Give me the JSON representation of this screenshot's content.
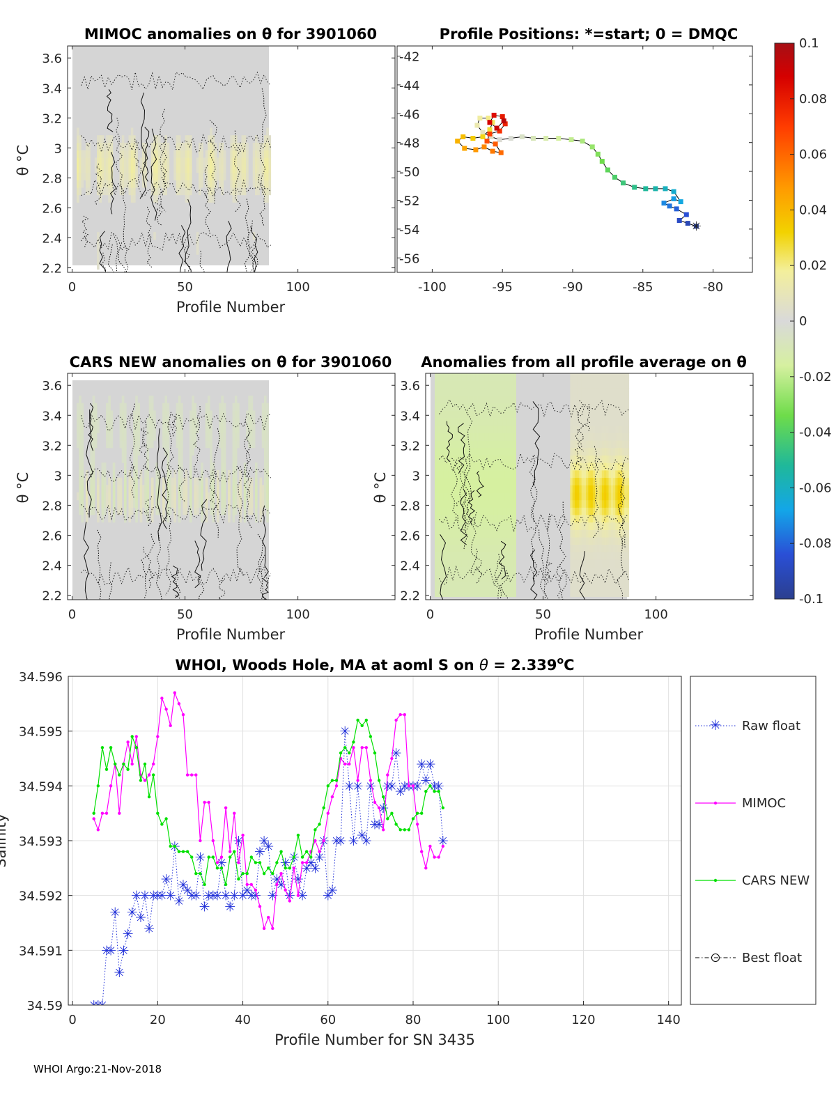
{
  "footer": "WHOI Argo:21-Nov-2018",
  "colorbar": {
    "ticks": [
      "0.1",
      "0.08",
      "0.06",
      "0.04",
      "0.02",
      "0",
      "-0.02",
      "-0.04",
      "-0.06",
      "-0.08",
      "-0.1"
    ],
    "range": [
      -0.1,
      0.1
    ],
    "colormap": "parula-like (blue-cyan-green-grey-yellow-orange-red)"
  },
  "chart_data": [
    {
      "id": "mimoc",
      "type": "heatmap",
      "title": "MIMOC anomalies on θ  for 3901060",
      "xlabel": "Profile Number",
      "ylabel": "θ °C",
      "xticks": [
        "0",
        "50",
        "100"
      ],
      "yticks": [
        "3.6",
        "3.4",
        "3.2",
        "3",
        "2.8",
        "2.6",
        "2.4",
        "2.2"
      ],
      "xlim": [
        -2,
        143
      ],
      "ylim": [
        2.17,
        3.68
      ],
      "data_x_range": [
        2,
        88
      ],
      "note_values": "weak anomalies, mostly 0 to +0.02 in the 2.6-3.0 band"
    },
    {
      "id": "positions",
      "type": "scatter",
      "title": "Profile Positions: *=start; 0 = DMQC",
      "xticks": [
        "-100",
        "-95",
        "-90",
        "-85",
        "-80"
      ],
      "yticks": [
        "-42",
        "-44",
        "-46",
        "-48",
        "-50",
        "-52",
        "-54",
        "-56"
      ],
      "xlim": [
        -102.5,
        -77.2
      ],
      "ylim": [
        -57,
        -41.3
      ],
      "track": [
        [
          -81.2,
          -53.8
        ],
        [
          -81.8,
          -53.6
        ],
        [
          -82.4,
          -53.4
        ],
        [
          -81.9,
          -53.0
        ],
        [
          -82.6,
          -52.6
        ],
        [
          -83.1,
          -52.4
        ],
        [
          -83.5,
          -52.2
        ],
        [
          -82.8,
          -51.9
        ],
        [
          -82.3,
          -52.1
        ],
        [
          -82.8,
          -51.4
        ],
        [
          -83.4,
          -51.2
        ],
        [
          -84.1,
          -51.2
        ],
        [
          -84.8,
          -51.2
        ],
        [
          -85.6,
          -51.1
        ],
        [
          -86.4,
          -50.8
        ],
        [
          -87.0,
          -50.4
        ],
        [
          -87.5,
          -49.9
        ],
        [
          -87.9,
          -49.3
        ],
        [
          -88.2,
          -48.8
        ],
        [
          -88.6,
          -48.3
        ],
        [
          -89.3,
          -47.9
        ],
        [
          -90.1,
          -47.8
        ],
        [
          -91.0,
          -47.7
        ],
        [
          -91.9,
          -47.7
        ],
        [
          -92.8,
          -47.7
        ],
        [
          -93.6,
          -47.6
        ],
        [
          -94.4,
          -47.7
        ],
        [
          -95.2,
          -47.8
        ],
        [
          -95.8,
          -47.6
        ],
        [
          -96.4,
          -47.3
        ],
        [
          -96.8,
          -46.8
        ],
        [
          -96.6,
          -46.3
        ],
        [
          -96.0,
          -46.3
        ],
        [
          -95.7,
          -46.6
        ],
        [
          -95.9,
          -47.1
        ],
        [
          -96.4,
          -47.6
        ],
        [
          -97.1,
          -47.7
        ],
        [
          -97.8,
          -47.6
        ],
        [
          -98.2,
          -47.9
        ],
        [
          -97.7,
          -48.4
        ],
        [
          -96.9,
          -48.5
        ],
        [
          -96.3,
          -48.3
        ],
        [
          -95.7,
          -48.6
        ],
        [
          -95.1,
          -48.7
        ],
        [
          -95.5,
          -48.1
        ],
        [
          -96.1,
          -47.9
        ],
        [
          -95.9,
          -47.4
        ],
        [
          -95.2,
          -47.2
        ],
        [
          -94.8,
          -46.7
        ],
        [
          -95.0,
          -46.2
        ],
        [
          -95.6,
          -46.1
        ],
        [
          -95.9,
          -46.6
        ],
        [
          -95.4,
          -47.0
        ],
        [
          -94.9,
          -46.5
        ]
      ],
      "track_color_from": "profile index (blue start → red end)"
    },
    {
      "id": "cars",
      "type": "heatmap",
      "title": "CARS NEW anomalies on θ for 3901060",
      "xlabel": "Profile Number",
      "ylabel": "θ °C",
      "xticks": [
        "0",
        "50",
        "100"
      ],
      "yticks": [
        "3.6",
        "3.4",
        "3.2",
        "3",
        "2.8",
        "2.6",
        "2.4",
        "2.2"
      ],
      "xlim": [
        -2,
        143
      ],
      "ylim": [
        2.17,
        3.68
      ],
      "data_x_range": [
        2,
        88
      ]
    },
    {
      "id": "allprof",
      "type": "heatmap",
      "title": "Anomalies from all profile average on θ",
      "xlabel": "Profile Number",
      "ylabel": "θ °C",
      "xticks": [
        "0",
        "50",
        "100"
      ],
      "yticks": [
        "3.6",
        "3.4",
        "3.2",
        "3",
        "2.8",
        "2.6",
        "2.4",
        "2.2"
      ],
      "xlim": [
        -2,
        143
      ],
      "ylim": [
        2.17,
        3.68
      ],
      "data_x_range": [
        2,
        88
      ],
      "note_values": "negative (-0.02) for profiles 2-35, positive (+0.03) for profiles 62-88 near θ 2.6-3.0"
    },
    {
      "id": "salinity",
      "type": "line",
      "title": "WHOI, Woods Hole, MA at aoml S on θ = 2.339°C",
      "title_parts": [
        "WHOI, Woods Hole, MA at aoml S on ",
        "θ",
        " = 2.339",
        "o",
        "C"
      ],
      "xlabel": "Profile Number for SN 3435",
      "ylabel": "Salinity",
      "xticks": [
        "0",
        "20",
        "40",
        "60",
        "80",
        "100",
        "120",
        "140"
      ],
      "yticks": [
        "34.596",
        "34.595",
        "34.594",
        "34.593",
        "34.592",
        "34.591",
        "34.59"
      ],
      "xlim": [
        -1,
        143
      ],
      "ylim": [
        34.59,
        34.596
      ],
      "grid": true,
      "legend": "right, outside axes",
      "series": [
        {
          "name": "Raw float",
          "style": "blue dotted with * markers",
          "color": "#1f2fd8",
          "x": [
            5,
            6,
            7,
            8,
            9,
            10,
            11,
            12,
            13,
            14,
            15,
            16,
            17,
            18,
            19,
            20,
            21,
            22,
            23,
            24,
            25,
            26,
            27,
            28,
            29,
            30,
            31,
            32,
            33,
            34,
            35,
            36,
            37,
            38,
            39,
            40,
            41,
            42,
            43,
            44,
            45,
            46,
            47,
            48,
            49,
            50,
            51,
            52,
            53,
            54,
            55,
            56,
            57,
            58,
            59,
            60,
            61,
            62,
            63,
            64,
            65,
            66,
            67,
            68,
            69,
            70,
            71,
            72,
            73,
            74,
            75,
            76,
            77,
            78,
            79,
            80,
            81,
            82,
            83,
            84,
            85,
            86,
            87
          ],
          "y": [
            34.59,
            34.59,
            34.59,
            34.591,
            34.591,
            34.5917,
            34.5906,
            34.591,
            34.5913,
            34.5917,
            34.592,
            34.5916,
            34.592,
            34.5914,
            34.592,
            34.592,
            34.592,
            34.5923,
            34.592,
            34.5929,
            34.5919,
            34.5922,
            34.5921,
            34.592,
            34.592,
            34.5927,
            34.5918,
            34.592,
            34.592,
            34.592,
            34.5926,
            34.592,
            34.5918,
            34.592,
            34.593,
            34.592,
            34.5921,
            34.592,
            34.592,
            34.5928,
            34.593,
            34.5929,
            34.592,
            34.5923,
            34.5922,
            34.5926,
            34.592,
            34.5927,
            34.5923,
            34.592,
            34.5925,
            34.5926,
            34.5925,
            34.5927,
            34.593,
            34.592,
            34.5921,
            34.593,
            34.593,
            34.595,
            34.594,
            34.593,
            34.594,
            34.5931,
            34.593,
            34.594,
            34.5933,
            34.5933,
            34.5936,
            34.594,
            34.594,
            34.5946,
            34.5939,
            34.594,
            34.594,
            34.594,
            34.594,
            34.5944,
            34.5941,
            34.5944,
            34.594,
            34.594,
            34.593
          ]
        },
        {
          "name": "MIMOC",
          "style": "magenta solid with dot markers",
          "color": "#ff00ff",
          "x": [
            5,
            6,
            7,
            8,
            9,
            10,
            11,
            12,
            13,
            14,
            15,
            16,
            17,
            18,
            19,
            20,
            21,
            22,
            23,
            24,
            25,
            26,
            27,
            28,
            29,
            30,
            31,
            32,
            33,
            34,
            35,
            36,
            37,
            38,
            39,
            40,
            41,
            42,
            43,
            44,
            45,
            46,
            47,
            48,
            49,
            50,
            51,
            52,
            53,
            54,
            55,
            56,
            57,
            58,
            59,
            60,
            61,
            62,
            63,
            64,
            65,
            66,
            67,
            68,
            69,
            70,
            71,
            72,
            73,
            74,
            75,
            76,
            77,
            78,
            79,
            80,
            81,
            82,
            83,
            84,
            85,
            86,
            87
          ],
          "y": [
            34.5934,
            34.5932,
            34.5935,
            34.5935,
            34.594,
            34.5944,
            34.5935,
            34.5944,
            34.5948,
            34.5944,
            34.5949,
            34.5942,
            34.5941,
            34.5942,
            34.5944,
            34.5949,
            34.5956,
            34.5954,
            34.5951,
            34.5957,
            34.5955,
            34.5953,
            34.5942,
            34.5942,
            34.5942,
            34.593,
            34.5937,
            34.5937,
            34.593,
            34.5926,
            34.5927,
            34.5936,
            34.5928,
            34.5935,
            34.5926,
            34.5931,
            34.5922,
            34.5922,
            34.5921,
            34.5918,
            34.5914,
            34.5916,
            34.5914,
            34.5922,
            34.5924,
            34.5921,
            34.5919,
            34.5925,
            34.592,
            34.5926,
            34.5926,
            34.5928,
            34.593,
            34.5928,
            34.593,
            34.5935,
            34.5938,
            34.594,
            34.5945,
            34.5944,
            34.5944,
            34.5947,
            34.5941,
            34.5947,
            34.5947,
            34.5941,
            34.5937,
            34.5936,
            34.5932,
            34.5942,
            34.5945,
            34.5952,
            34.5953,
            34.5953,
            34.594,
            34.594,
            34.5933,
            34.5928,
            34.5925,
            34.5929,
            34.5927,
            34.5927,
            34.5929
          ]
        },
        {
          "name": "CARS NEW",
          "style": "green solid with dot markers",
          "color": "#00e000",
          "x": [
            5,
            6,
            7,
            8,
            9,
            10,
            11,
            12,
            13,
            14,
            15,
            16,
            17,
            18,
            19,
            20,
            21,
            22,
            23,
            24,
            25,
            26,
            27,
            28,
            29,
            30,
            31,
            32,
            33,
            34,
            35,
            36,
            37,
            38,
            39,
            40,
            41,
            42,
            43,
            44,
            45,
            46,
            47,
            48,
            49,
            50,
            51,
            52,
            53,
            54,
            55,
            56,
            57,
            58,
            59,
            60,
            61,
            62,
            63,
            64,
            65,
            66,
            67,
            68,
            69,
            70,
            71,
            72,
            73,
            74,
            75,
            76,
            77,
            78,
            79,
            80,
            81,
            82,
            83,
            84,
            85,
            86,
            87
          ],
          "y": [
            34.5935,
            34.594,
            34.5947,
            34.5943,
            34.5947,
            34.5944,
            34.5942,
            34.5944,
            34.5943,
            34.5949,
            34.5947,
            34.5941,
            34.5944,
            34.5938,
            34.5942,
            34.5935,
            34.5933,
            34.5934,
            34.5929,
            34.5929,
            34.5928,
            34.5928,
            34.5928,
            34.5927,
            34.5924,
            34.5924,
            34.5922,
            34.5927,
            34.5927,
            34.5925,
            34.5925,
            34.5922,
            34.5927,
            34.5928,
            34.5923,
            34.5924,
            34.5924,
            34.5927,
            34.5926,
            34.5926,
            34.5924,
            34.5925,
            34.5924,
            34.5926,
            34.5928,
            34.5925,
            34.5925,
            34.5927,
            34.5931,
            34.5927,
            34.5928,
            34.5927,
            34.5932,
            34.5933,
            34.5936,
            34.594,
            34.5941,
            34.5941,
            34.5946,
            34.5947,
            34.5946,
            34.5948,
            34.5952,
            34.5951,
            34.5952,
            34.5949,
            34.5946,
            34.5941,
            34.5938,
            34.5934,
            34.5935,
            34.5933,
            34.5932,
            34.5932,
            34.5932,
            34.5934,
            34.5935,
            34.5935,
            34.5939,
            34.594,
            34.5939,
            34.5939,
            34.5936
          ]
        },
        {
          "name": "Best float",
          "style": "black dash-dot with o markers",
          "color": "#000000",
          "x": [],
          "y": []
        }
      ]
    }
  ]
}
